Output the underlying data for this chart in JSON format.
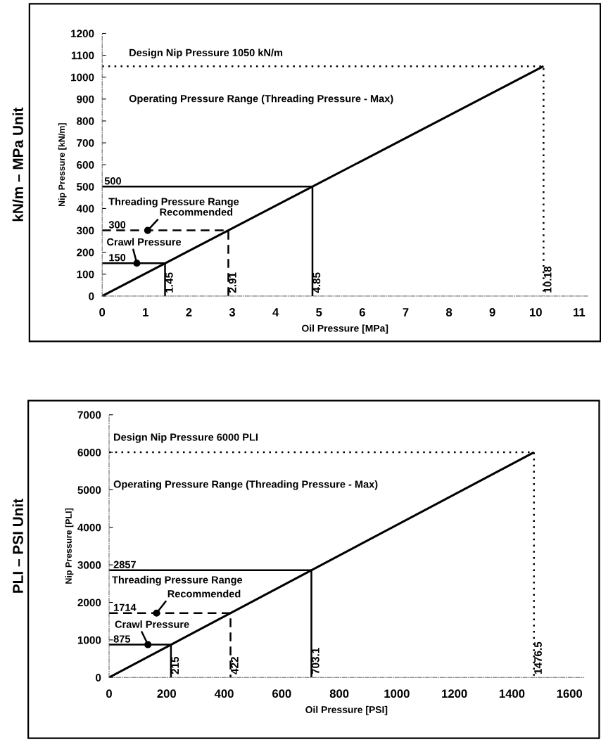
{
  "chart_data": [
    {
      "type": "line",
      "title": "kN/m – MPa Unit",
      "xlabel": "Oil Pressure [MPa]",
      "ylabel": "Nip Pressure [kN/m]",
      "xlim": [
        0,
        11.2
      ],
      "ylim": [
        0,
        1200
      ],
      "xticks": [
        0,
        1,
        2,
        3,
        4,
        5,
        6,
        7,
        8,
        9,
        10,
        11
      ],
      "yticks": [
        0,
        100,
        200,
        300,
        400,
        500,
        600,
        700,
        800,
        900,
        1000,
        1100,
        1200
      ],
      "series": [
        {
          "type": "line",
          "color": "#000000",
          "line_style": "solid",
          "x": [
            0,
            10.18
          ],
          "values": [
            0,
            1050
          ]
        },
        {
          "type": "line",
          "color": "#000000",
          "line_style": "dotted",
          "x": [
            0,
            10.18,
            10.18
          ],
          "values": [
            1050,
            1050,
            0
          ]
        },
        {
          "type": "line",
          "color": "#000000",
          "line_style": "solid",
          "x": [
            0,
            4.85,
            4.85
          ],
          "values": [
            500,
            500,
            0
          ]
        },
        {
          "type": "line",
          "color": "#000000",
          "line_style": "dashed",
          "x": [
            0,
            2.91,
            2.91
          ],
          "values": [
            300,
            300,
            0
          ]
        },
        {
          "type": "line",
          "color": "#000000",
          "line_style": "solid",
          "x": [
            0,
            1.45,
            1.45
          ],
          "values": [
            150,
            150,
            0
          ]
        },
        {
          "type": "scatter",
          "color": "#000000",
          "marker": "circle",
          "x": [
            1.05,
            0.8
          ],
          "values": [
            300,
            150
          ]
        }
      ],
      "annotations": [
        "Design Nip Pressure 1050 kN/m",
        "Operating Pressure Range (Threading Pressure - Max)",
        {
          "text": "500",
          "x": 0.05,
          "y": 500
        },
        "Threading Pressure Range",
        {
          "text": "Recommended",
          "x": 1.05,
          "y": 300
        },
        {
          "text": "300",
          "x": 0.15,
          "y": 300
        },
        {
          "text": "Crawl Pressure",
          "x": 0.8,
          "y": 150
        },
        {
          "text": "150",
          "x": 0.15,
          "y": 150
        },
        {
          "text": "1.45",
          "x": 1.45,
          "y": 0
        },
        {
          "text": "2.91",
          "x": 2.91,
          "y": 0
        },
        {
          "text": "4.85",
          "x": 4.85,
          "y": 0
        },
        {
          "text": "10.18",
          "x": 10.18,
          "y": 0
        }
      ]
    },
    {
      "type": "line",
      "title": "PLI – PSI Unit",
      "xlabel": "Oil Pressure [PSI]",
      "ylabel": "Nip Pressure [PLI]",
      "xlim": [
        0,
        1650
      ],
      "ylim": [
        0,
        7000
      ],
      "xticks": [
        0,
        200,
        400,
        600,
        800,
        1000,
        1200,
        1400,
        1600
      ],
      "yticks": [
        0,
        1000,
        2000,
        3000,
        4000,
        5000,
        6000,
        7000
      ],
      "series": [
        {
          "type": "line",
          "color": "#000000",
          "line_style": "solid",
          "x": [
            0,
            1476.5
          ],
          "values": [
            0,
            6000
          ]
        },
        {
          "type": "line",
          "color": "#000000",
          "line_style": "dotted",
          "x": [
            0,
            1476.5,
            1476.5
          ],
          "values": [
            6000,
            6000,
            0
          ]
        },
        {
          "type": "line",
          "color": "#000000",
          "line_style": "solid",
          "x": [
            0,
            703.1,
            703.1
          ],
          "values": [
            2857,
            2857,
            0
          ]
        },
        {
          "type": "line",
          "color": "#000000",
          "line_style": "dashed",
          "x": [
            0,
            422,
            422
          ],
          "values": [
            1714,
            1714,
            0
          ]
        },
        {
          "type": "line",
          "color": "#000000",
          "line_style": "solid",
          "x": [
            0,
            215,
            215
          ],
          "values": [
            875,
            875,
            0
          ]
        },
        {
          "type": "scatter",
          "color": "#000000",
          "marker": "circle",
          "x": [
            165,
            135
          ],
          "values": [
            1714,
            875
          ]
        }
      ],
      "annotations": [
        "Design Nip Pressure 6000 PLI",
        "Operating Pressure Range (Threading Pressure - Max)",
        {
          "text": "2857",
          "x": 15,
          "y": 2857
        },
        "Threading Pressure Range",
        {
          "text": "Recommended",
          "x": 165,
          "y": 1714
        },
        {
          "text": "1714",
          "x": 15,
          "y": 1714
        },
        {
          "text": "Crawl Pressure",
          "x": 135,
          "y": 875
        },
        {
          "text": "875",
          "x": 15,
          "y": 875
        },
        {
          "text": "215",
          "x": 215,
          "y": 0
        },
        {
          "text": "422",
          "x": 422,
          "y": 0
        },
        {
          "text": "703.1",
          "x": 703.1,
          "y": 0
        },
        {
          "text": "1476.5",
          "x": 1476.5,
          "y": 0
        }
      ]
    }
  ]
}
